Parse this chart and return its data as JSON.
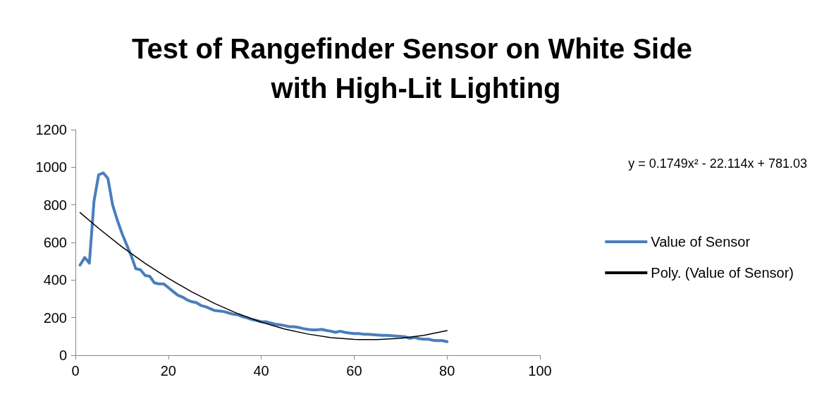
{
  "chart_data": {
    "type": "line",
    "title": "Test of Rangefinder Sensor on White Side with High-Lit Lighting",
    "x": [
      1,
      2,
      3,
      4,
      5,
      6,
      7,
      8,
      9,
      10,
      11,
      12,
      13,
      14,
      15,
      16,
      17,
      18,
      19,
      20,
      21,
      22,
      23,
      24,
      25,
      26,
      27,
      28,
      29,
      30,
      31,
      32,
      33,
      34,
      35,
      36,
      37,
      38,
      39,
      40,
      41,
      42,
      43,
      44,
      45,
      46,
      47,
      48,
      49,
      50,
      51,
      52,
      53,
      54,
      55,
      56,
      57,
      58,
      59,
      60,
      61,
      62,
      63,
      64,
      65,
      66,
      67,
      68,
      69,
      70,
      71,
      72,
      73,
      74,
      75,
      76,
      77,
      78,
      79,
      80
    ],
    "series": [
      {
        "name": "Value of Sensor",
        "color": "#4a7ebb",
        "values": [
          480,
          520,
          490,
          820,
          960,
          970,
          940,
          800,
          720,
          650,
          590,
          530,
          460,
          455,
          425,
          420,
          385,
          380,
          380,
          360,
          340,
          320,
          310,
          295,
          285,
          280,
          265,
          258,
          248,
          238,
          235,
          232,
          225,
          218,
          215,
          205,
          198,
          190,
          185,
          178,
          178,
          172,
          165,
          162,
          158,
          152,
          152,
          148,
          142,
          138,
          135,
          135,
          138,
          132,
          128,
          122,
          128,
          122,
          118,
          115,
          115,
          112,
          112,
          110,
          108,
          106,
          106,
          104,
          102,
          100,
          98,
          90,
          95,
          88,
          85,
          85,
          80,
          78,
          78,
          72
        ]
      },
      {
        "name": "Poly. (Value of Sensor)",
        "color": "#000000",
        "x": [
          1,
          5,
          10,
          15,
          20,
          25,
          30,
          35,
          40,
          45,
          50,
          55,
          60,
          65,
          70,
          75,
          80
        ],
        "values": [
          759,
          675,
          577,
          489,
          409,
          338,
          275,
          221,
          176,
          140,
          113,
          94,
          84,
          83,
          90,
          106,
          131
        ]
      }
    ],
    "annotations": [
      "y = 0.1749x² - 22.114x + 781.03"
    ],
    "xlim": [
      0,
      100
    ],
    "xticks": [
      0,
      20,
      40,
      60,
      80,
      100
    ],
    "ylim": [
      0,
      1200
    ],
    "yticks": [
      0,
      200,
      400,
      600,
      800,
      1000,
      1200
    ],
    "grid": false,
    "legend": "right",
    "marker": "none",
    "line_style": "solid"
  }
}
